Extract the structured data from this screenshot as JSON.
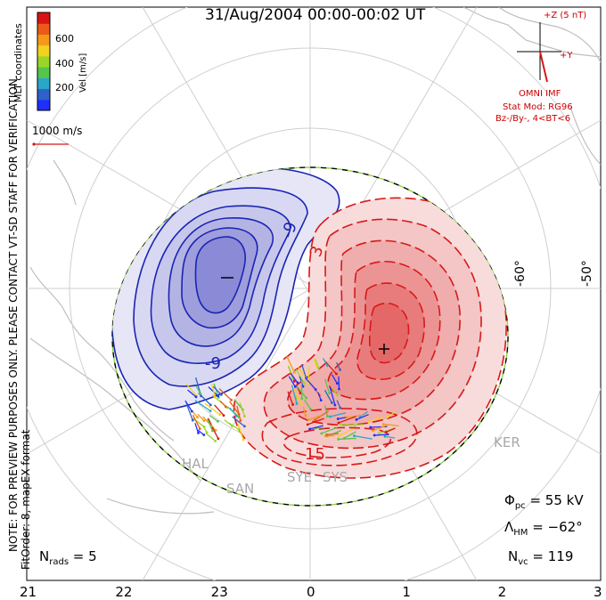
{
  "chart_data": {
    "type": "contour",
    "title": "31/Aug/2004 00:00-00:02 UT",
    "coordinates_label": "MLT coordinates",
    "color_scale": {
      "label": "Vel [m/s]",
      "ticks": [
        "200",
        "400",
        "600"
      ],
      "colors": [
        "#1f2fff",
        "#2f62c8",
        "#2aa6c8",
        "#54c64a",
        "#9ad62a",
        "#f2d21e",
        "#f59a18",
        "#ec5a18",
        "#d91414"
      ]
    },
    "reference_vector": "1000 m/s",
    "imf": {
      "z_label": "+Z (5 nT)",
      "y_label": "+Y",
      "source": "OMNI IMF",
      "model": "Stat Mod: RG96",
      "condition": "Bz-/By-, 4<BT<6"
    },
    "notes": {
      "preview": "NOTE: FOR PREVIEW PURPOSES ONLY. PLEASE CONTACT VT-SD STAFF FOR VERIFICATION.",
      "fit": "FitOrder: 8, mapEX format"
    },
    "latitude_labels": [
      "-60°",
      "-50°"
    ],
    "mlt_labels": [
      "21",
      "22",
      "23",
      "0",
      "1",
      "2",
      "3"
    ],
    "contour_labels": [
      "-9",
      "-9",
      "3",
      "15"
    ],
    "stations": [
      "KER",
      "HAL",
      "SAN",
      "SYE",
      "SYS"
    ],
    "stats": {
      "phi_symbol": "Φ",
      "phi_sub": "pc",
      "phi_value": " = 55 kV",
      "lambda_symbol": "Λ",
      "lambda_sub": "HM",
      "lambda_value": " = −62°",
      "nvc_symbol": "N",
      "nvc_sub": "vc",
      "nvc_value": " = 119",
      "nrads_symbol": "N",
      "nrads_sub": "rads",
      "nrads_value": " = 5"
    },
    "potential_minimum": "-",
    "potential_maximum": "+",
    "convection_cells": [
      {
        "sign": "negative",
        "contour_levels": 6,
        "color": "#1a24b4"
      },
      {
        "sign": "positive",
        "contour_levels": 8,
        "color": "#d81818"
      }
    ]
  }
}
